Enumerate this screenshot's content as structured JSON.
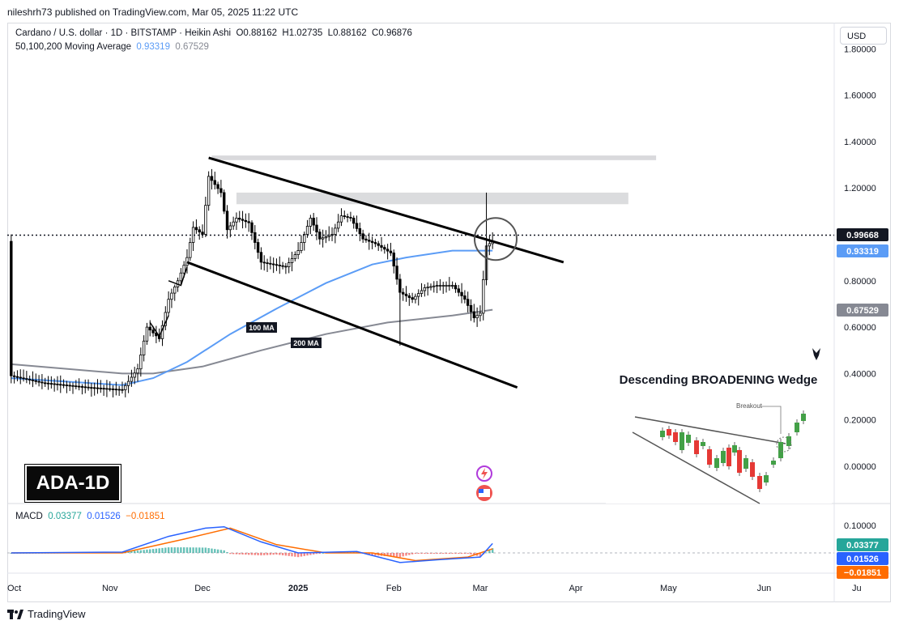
{
  "header": {
    "published_text": "nileshrh73 published on TradingView.com, Mar 05, 2025 11:22 UTC"
  },
  "legend": {
    "symbol_line": "Cardano / U.S. dollar · 1D · BITSTAMP · Heikin Ashi",
    "ohlc": {
      "o_label": "O",
      "o": "0.88162",
      "h_label": "H",
      "h": "1.02735",
      "l_label": "L",
      "l": "0.88162",
      "c_label": "C",
      "c": "0.96876"
    },
    "ma_label": "50,100,200 Moving Average",
    "ma_val1": "0.93319",
    "ma_val2": "0.67529"
  },
  "currency_button": "USD",
  "badge": "ADA-1D",
  "footer": {
    "brand": "TradingView"
  },
  "macd_legend": {
    "label": "MACD",
    "v1": "0.03377",
    "v2": "0.01526",
    "v3": "−0.01851"
  },
  "inset": {
    "title": "Descending BROADENING Wedge",
    "breakout_label": "Breakout"
  },
  "colors": {
    "ma_blue": "#5b9cf6",
    "ma_gray": "#868993",
    "macd_line": "#2962ff",
    "signal_line": "#ff6d00",
    "hist_up": "#26a69a",
    "hist_down": "#ef5350",
    "price_label": "#131722"
  },
  "chart_data": {
    "type": "candlestick",
    "x_tick_labels": [
      "Oct",
      "Nov",
      "Dec",
      "2025",
      "Feb",
      "Mar",
      "Apr",
      "May",
      "Jun",
      "Ju"
    ],
    "price_axis": {
      "ticks": [
        "1.80000",
        "1.60000",
        "1.40000",
        "1.20000",
        "0.80000",
        "0.60000",
        "0.40000",
        "0.20000",
        "0.00000"
      ],
      "ylim": [
        -0.1,
        1.85
      ]
    },
    "price_labels": [
      {
        "text": "0.99668",
        "value": 0.99668,
        "kind": "last_price"
      },
      {
        "text": "0.93319",
        "value": 0.93319,
        "kind": "ma_blue"
      },
      {
        "text": "0.67529",
        "value": 0.67529,
        "kind": "ma_gray"
      }
    ],
    "annotations": [
      "100 MA",
      "200 MA"
    ],
    "resistance_zones": [
      {
        "from": 1.32,
        "to": 1.34
      },
      {
        "from": 1.13,
        "to": 1.18
      }
    ],
    "wedge_lines": [
      {
        "from": {
          "date": "2024-12-03",
          "price": 1.33
        },
        "to": {
          "date": "2025-03-28",
          "price": 0.88
        }
      },
      {
        "from": {
          "date": "2024-11-26",
          "price": 0.88
        },
        "to": {
          "date": "2025-03-13",
          "price": 0.34
        }
      }
    ],
    "price_keypoints": [
      [
        "2024-09-30",
        0.39
      ],
      [
        "2024-10-10",
        0.36
      ],
      [
        "2024-10-25",
        0.34
      ],
      [
        "2024-11-05",
        0.33
      ],
      [
        "2024-11-10",
        0.42
      ],
      [
        "2024-11-13",
        0.6
      ],
      [
        "2024-11-17",
        0.55
      ],
      [
        "2024-11-20",
        0.72
      ],
      [
        "2024-11-23",
        0.8
      ],
      [
        "2024-11-26",
        0.9
      ],
      [
        "2024-11-28",
        1.03
      ],
      [
        "2024-12-01",
        1.0
      ],
      [
        "2024-12-03",
        1.25
      ],
      [
        "2024-12-07",
        1.18
      ],
      [
        "2024-12-09",
        1.02
      ],
      [
        "2024-12-12",
        1.07
      ],
      [
        "2024-12-16",
        1.05
      ],
      [
        "2024-12-20",
        0.88
      ],
      [
        "2024-12-24",
        0.87
      ],
      [
        "2024-12-28",
        0.86
      ],
      [
        "2025-01-01",
        0.93
      ],
      [
        "2025-01-05",
        1.07
      ],
      [
        "2025-01-08",
        0.98
      ],
      [
        "2025-01-12",
        1.0
      ],
      [
        "2025-01-15",
        1.08
      ],
      [
        "2025-01-18",
        1.07
      ],
      [
        "2025-01-22",
        0.98
      ],
      [
        "2025-01-26",
        0.96
      ],
      [
        "2025-01-31",
        0.92
      ],
      [
        "2025-02-03",
        0.75
      ],
      [
        "2025-02-07",
        0.72
      ],
      [
        "2025-02-11",
        0.77
      ],
      [
        "2025-02-15",
        0.78
      ],
      [
        "2025-02-20",
        0.78
      ],
      [
        "2025-02-24",
        0.72
      ],
      [
        "2025-02-27",
        0.64
      ],
      [
        "2025-03-01",
        0.66
      ],
      [
        "2025-03-03",
        0.95
      ],
      [
        "2025-03-05",
        0.97
      ]
    ],
    "ma_blue": [
      [
        "2024-09-30",
        0.38
      ],
      [
        "2024-11-05",
        0.35
      ],
      [
        "2024-11-15",
        0.38
      ],
      [
        "2024-11-26",
        0.45
      ],
      [
        "2024-12-10",
        0.57
      ],
      [
        "2024-12-25",
        0.68
      ],
      [
        "2025-01-10",
        0.79
      ],
      [
        "2025-01-25",
        0.87
      ],
      [
        "2025-02-05",
        0.9
      ],
      [
        "2025-02-20",
        0.93
      ],
      [
        "2025-03-05",
        0.93
      ]
    ],
    "ma_gray": [
      [
        "2024-09-30",
        0.44
      ],
      [
        "2024-11-05",
        0.4
      ],
      [
        "2024-11-15",
        0.4
      ],
      [
        "2024-12-01",
        0.43
      ],
      [
        "2024-12-20",
        0.5
      ],
      [
        "2025-01-10",
        0.57
      ],
      [
        "2025-01-30",
        0.62
      ],
      [
        "2025-02-20",
        0.65
      ],
      [
        "2025-03-05",
        0.675
      ]
    ],
    "macd": {
      "ticks": [
        "0.10000"
      ],
      "macd_line": [
        [
          "2024-09-30",
          0.0
        ],
        [
          "2024-11-05",
          0.003
        ],
        [
          "2024-11-20",
          0.06
        ],
        [
          "2024-12-02",
          0.09
        ],
        [
          "2024-12-08",
          0.095
        ],
        [
          "2024-12-20",
          0.04
        ],
        [
          "2025-01-01",
          0.0
        ],
        [
          "2025-01-20",
          0.005
        ],
        [
          "2025-02-03",
          -0.035
        ],
        [
          "2025-02-15",
          -0.025
        ],
        [
          "2025-03-01",
          -0.015
        ],
        [
          "2025-03-05",
          0.034
        ]
      ],
      "signal_line": [
        [
          "2024-09-30",
          0.0
        ],
        [
          "2024-11-05",
          0.0
        ],
        [
          "2024-11-25",
          0.05
        ],
        [
          "2024-12-10",
          0.09
        ],
        [
          "2024-12-25",
          0.03
        ],
        [
          "2025-01-10",
          0.0
        ],
        [
          "2025-01-25",
          0.0
        ],
        [
          "2025-02-08",
          -0.028
        ],
        [
          "2025-02-25",
          -0.015
        ],
        [
          "2025-03-05",
          0.015
        ]
      ],
      "histogram_value": "−0.01851"
    }
  }
}
